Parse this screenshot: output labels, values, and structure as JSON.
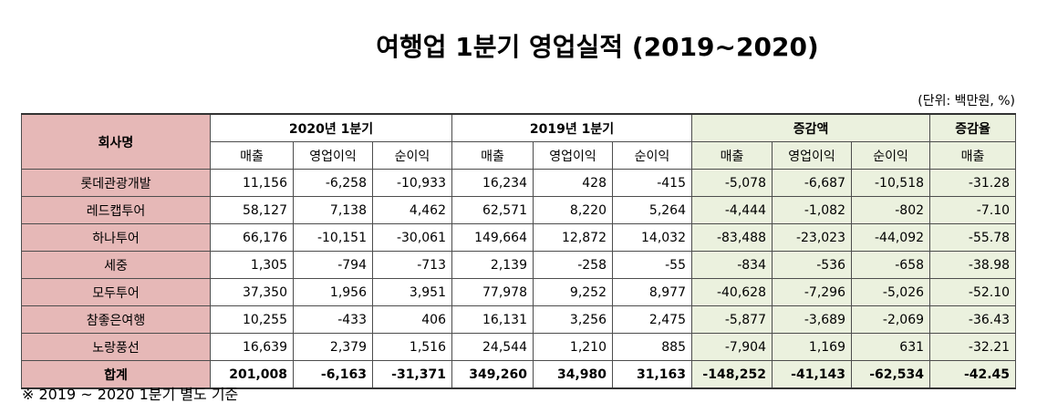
{
  "title": "여행업 1분기 영업실적 (2019~2020)",
  "unit": "(단위: 백만원, %)",
  "header": {
    "company": "회사명",
    "group_2020": "2020년 1분기",
    "group_2019": "2019년 1분기",
    "group_change": "증감액",
    "group_rate": "증감율",
    "sub": [
      "매출",
      "영업이익",
      "순이익",
      "매출",
      "영업이익",
      "순이익",
      "매출",
      "영업이익",
      "순이익",
      "매출"
    ]
  },
  "rows": [
    {
      "name": "롯데관광개발",
      "v": [
        "11,156",
        "-6,258",
        "-10,933",
        "16,234",
        "428",
        "-415",
        "-5,078",
        "-6,687",
        "-10,518",
        "-31.28"
      ]
    },
    {
      "name": "레드캡투어",
      "v": [
        "58,127",
        "7,138",
        "4,462",
        "62,571",
        "8,220",
        "5,264",
        "-4,444",
        "-1,082",
        "-802",
        "-7.10"
      ]
    },
    {
      "name": "하나투어",
      "v": [
        "66,176",
        "-10,151",
        "-30,061",
        "149,664",
        "12,872",
        "14,032",
        "-83,488",
        "-23,023",
        "-44,092",
        "-55.78"
      ]
    },
    {
      "name": "세중",
      "v": [
        "1,305",
        "-794",
        "-713",
        "2,139",
        "-258",
        "-55",
        "-834",
        "-536",
        "-658",
        "-38.98"
      ]
    },
    {
      "name": "모두투어",
      "v": [
        "37,350",
        "1,956",
        "3,951",
        "77,978",
        "9,252",
        "8,977",
        "-40,628",
        "-7,296",
        "-5,026",
        "-52.10"
      ]
    },
    {
      "name": "참좋은여행",
      "v": [
        "10,255",
        "-433",
        "406",
        "16,131",
        "3,256",
        "2,475",
        "-5,877",
        "-3,689",
        "-2,069",
        "-36.43"
      ]
    },
    {
      "name": "노랑풍선",
      "v": [
        "16,639",
        "2,379",
        "1,516",
        "24,544",
        "1,210",
        "885",
        "-7,904",
        "1,169",
        "631",
        "-32.21"
      ]
    }
  ],
  "total": {
    "name": "합계",
    "v": [
      "201,008",
      "-6,163",
      "-31,371",
      "349,260",
      "34,980",
      "31,163",
      "-148,252",
      "-41,143",
      "-62,534",
      "-42.45"
    ]
  },
  "note": "※ 2019 ~ 2020 1분기 별도 기준",
  "colors": {
    "company_bg": "#e6b8b7",
    "change_bg": "#ebf1de",
    "border": "#4d4d4d"
  }
}
